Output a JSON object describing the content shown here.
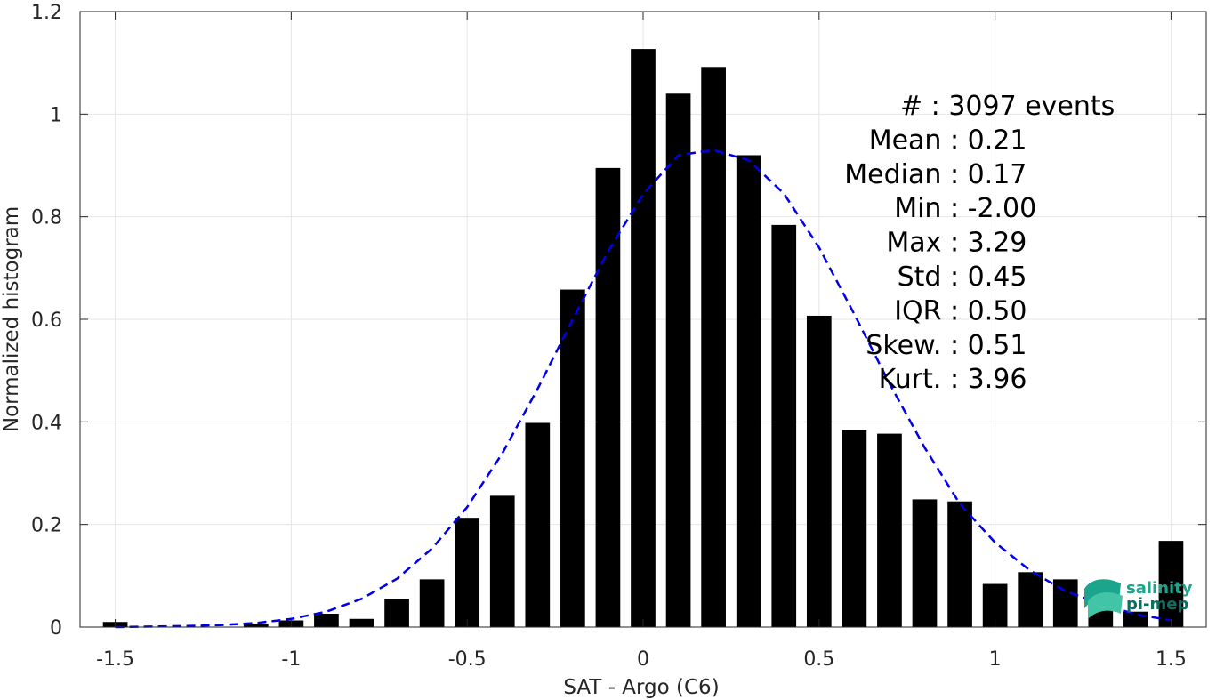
{
  "chart_data": {
    "type": "bar",
    "xlabel": "SAT - Argo (C6)",
    "ylabel": "Normalized histogram",
    "xlim": [
      -1.6,
      1.6
    ],
    "ylim": [
      0,
      1.2
    ],
    "xticks": [
      "-1.5",
      "-1",
      "-0.5",
      "0",
      "0.5",
      "1",
      "1.5"
    ],
    "xtick_values": [
      -1.5,
      -1,
      -0.5,
      0,
      0.5,
      1,
      1.5
    ],
    "yticks": [
      "0",
      "0.2",
      "0.4",
      "0.6",
      "0.8",
      "1",
      "1.2"
    ],
    "ytick_values": [
      0,
      0.2,
      0.4,
      0.6,
      0.8,
      1,
      1.2
    ],
    "grid": true,
    "bar_color": "#000000",
    "series": [
      {
        "type": "bar",
        "x": [
          -1.5,
          -1.4,
          -1.3,
          -1.2,
          -1.1,
          -1.0,
          -0.9,
          -0.8,
          -0.7,
          -0.6,
          -0.5,
          -0.4,
          -0.3,
          -0.2,
          -0.1,
          0.0,
          0.1,
          0.2,
          0.3,
          0.4,
          0.5,
          0.6,
          0.7,
          0.8,
          0.9,
          1.0,
          1.1,
          1.2,
          1.3,
          1.4,
          1.5
        ],
        "values": [
          0.01,
          0.0,
          0.0,
          0.0,
          0.007,
          0.013,
          0.026,
          0.016,
          0.055,
          0.093,
          0.213,
          0.256,
          0.398,
          0.658,
          0.895,
          1.127,
          1.04,
          1.092,
          0.92,
          0.784,
          0.607,
          0.384,
          0.377,
          0.249,
          0.245,
          0.084,
          0.107,
          0.093,
          0.05,
          0.03,
          0.168
        ]
      },
      {
        "type": "line",
        "style": "dashed",
        "color": "#0000e6",
        "x": [
          -1.5,
          -1.4,
          -1.3,
          -1.2,
          -1.1,
          -1.0,
          -0.9,
          -0.8,
          -0.7,
          -0.6,
          -0.5,
          -0.4,
          -0.3,
          -0.2,
          -0.1,
          0.0,
          0.1,
          0.2,
          0.3,
          0.4,
          0.5,
          0.6,
          0.7,
          0.8,
          0.9,
          1.0,
          1.1,
          1.2,
          1.3,
          1.4,
          1.5
        ],
        "values": [
          0.0,
          0.001,
          0.002,
          0.004,
          0.008,
          0.016,
          0.03,
          0.055,
          0.094,
          0.153,
          0.234,
          0.339,
          0.464,
          0.6,
          0.732,
          0.844,
          0.92,
          0.93,
          0.91,
          0.845,
          0.74,
          0.61,
          0.475,
          0.35,
          0.24,
          0.165,
          0.11,
          0.07,
          0.045,
          0.025,
          0.013
        ]
      }
    ],
    "stats": [
      {
        "label": "#  : 3097 events"
      },
      {
        "label": "Mean : 0.21"
      },
      {
        "label": "Median : 0.17"
      },
      {
        "label": "Min : -2.00"
      },
      {
        "label": "Max : 3.29"
      },
      {
        "label": "Std : 0.45"
      },
      {
        "label": "IQR : 0.50"
      },
      {
        "label": "Skew. : 0.51"
      },
      {
        "label": "Kurt. : 3.96"
      }
    ]
  },
  "logo": {
    "line1": "salinity",
    "line2": "pi-mep",
    "colors": {
      "teal": "#1aa58c",
      "dark": "#0e6f61",
      "light": "#42c4a6"
    }
  }
}
